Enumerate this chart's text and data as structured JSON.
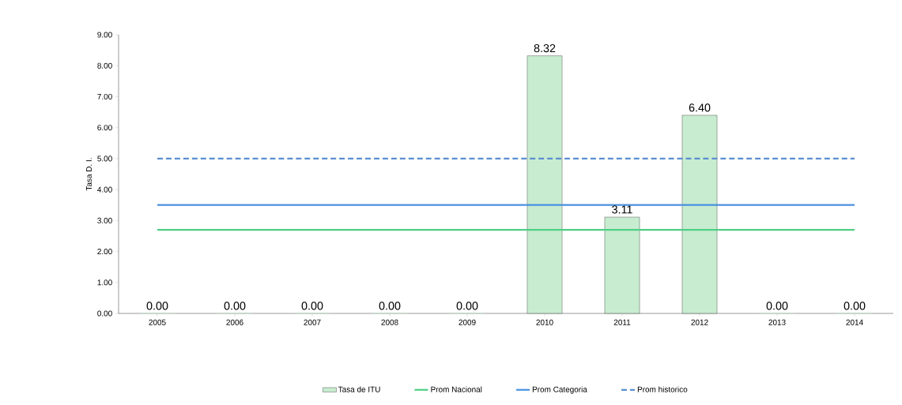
{
  "chart_data": {
    "type": "bar",
    "ylabel": "Tasa D. I.",
    "categories": [
      "2005",
      "2006",
      "2007",
      "2008",
      "2009",
      "2010",
      "2011",
      "2012",
      "2013",
      "2014"
    ],
    "series": [
      {
        "name": "Tasa de ITU",
        "color": "#c8ecd0",
        "values": [
          0,
          0,
          0,
          0,
          0,
          8.32,
          3.11,
          6.4,
          0,
          0
        ],
        "value_labels": [
          "0.00",
          "0.00",
          "0.00",
          "0.00",
          "0.00",
          "8.32",
          "3.11",
          "6.40",
          "0.00",
          "0.00"
        ]
      },
      {
        "name": "Prom Nacional",
        "type": "line",
        "color": "#4fcf85",
        "values": [
          2.7,
          2.7,
          2.7,
          2.7,
          2.7,
          2.7,
          2.7,
          2.7,
          2.7,
          2.7
        ]
      },
      {
        "name": "Prom Categoria",
        "type": "line",
        "color": "#4a90e0",
        "values": [
          3.5,
          3.5,
          3.5,
          3.5,
          3.5,
          3.5,
          3.5,
          3.5,
          3.5,
          3.5
        ]
      },
      {
        "name": "Prom historico",
        "type": "line",
        "color": "#5b8ed0",
        "line_style": "dashed",
        "values": [
          5.0,
          5.0,
          5.0,
          5.0,
          5.0,
          5.0,
          5.0,
          5.0,
          5.0,
          5.0
        ]
      }
    ],
    "ylim": [
      0,
      9
    ],
    "yticks": [
      {
        "value": 0,
        "label": "0.00"
      },
      {
        "value": 1,
        "label": "1.00"
      },
      {
        "value": 2,
        "label": "2.00"
      },
      {
        "value": 3,
        "label": "3.00"
      },
      {
        "value": 4,
        "label": "4.00"
      },
      {
        "value": 5,
        "label": "5.00"
      },
      {
        "value": 6,
        "label": "6.00"
      },
      {
        "value": 7,
        "label": "7.00"
      },
      {
        "value": 8,
        "label": "8.00"
      },
      {
        "value": 9,
        "label": "9.00"
      }
    ],
    "grid": false,
    "legend": "bottom"
  }
}
